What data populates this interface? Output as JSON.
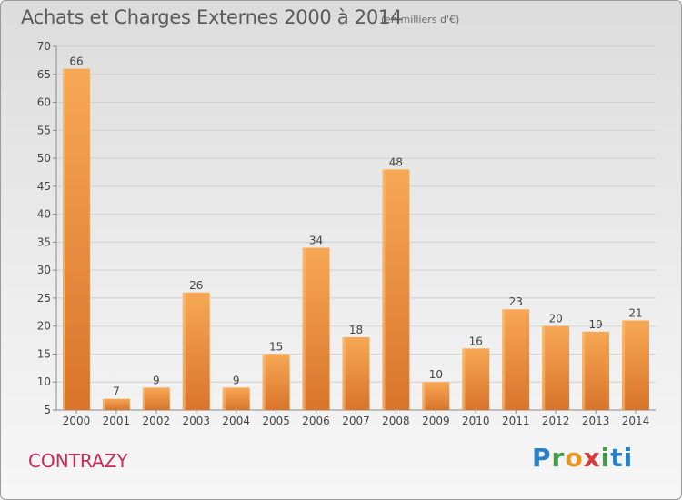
{
  "header": {
    "title": "Achats et Charges Externes 2000 à 2014",
    "subtitle": "(en milliers d'€)"
  },
  "footer": {
    "location": "CONTRAZY",
    "logo_text": "Proxiti"
  },
  "colors": {
    "bar_light": "#f7a854",
    "bar_dark": "#d9742a",
    "grid": "#d0d0d0",
    "axis_text": "#444444",
    "location": "#c8285a"
  },
  "chart_data": {
    "type": "bar",
    "title": "Achats et Charges Externes 2000 à 2014",
    "subtitle": "(en milliers d'€)",
    "categories": [
      "2000",
      "2001",
      "2002",
      "2003",
      "2004",
      "2005",
      "2006",
      "2007",
      "2008",
      "2009",
      "2010",
      "2011",
      "2012",
      "2013",
      "2014"
    ],
    "values": [
      66,
      7,
      9,
      26,
      9,
      15,
      34,
      18,
      48,
      10,
      16,
      23,
      20,
      19,
      21
    ],
    "ylim": [
      5,
      70
    ],
    "yticks": [
      5,
      10,
      15,
      20,
      25,
      30,
      35,
      40,
      45,
      50,
      55,
      60,
      65,
      70
    ],
    "grid": true,
    "legend": "none",
    "data_labels": true
  }
}
